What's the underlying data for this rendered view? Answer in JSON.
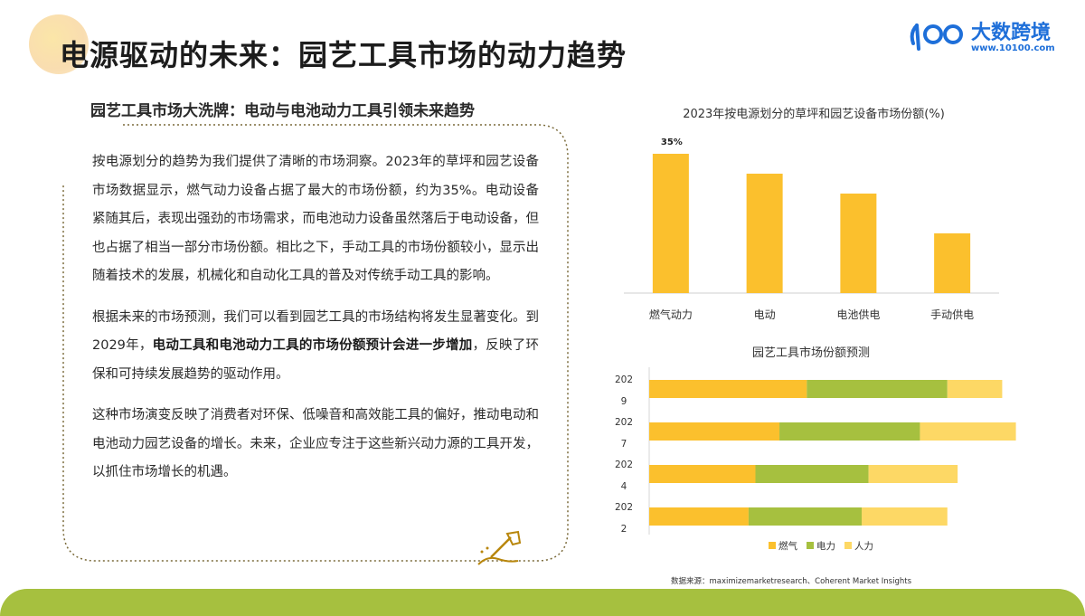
{
  "title": "电源驱动的未来：园艺工具市场的动力趋势",
  "logo": {
    "brand": "大数跨境",
    "url": "www.10100.com"
  },
  "subtitle": "园艺工具市场大洗牌：电动与电池动力工具引领未来趋势",
  "paragraphs": {
    "p1": "按电源划分的趋势为我们提供了清晰的市场洞察。2023年的草坪和园艺设备市场数据显示，燃气动力设备占据了最大的市场份额，约为35%。电动设备紧随其后，表现出强劲的市场需求，而电池动力设备虽然落后于电动设备，但也占据了相当一部分市场份额。相比之下，手动工具的市场份额较小，显示出随着技术的发展，机械化和自动化工具的普及对传统手动工具的影响。",
    "p2_a": "根据未来的市场预测，我们可以看到园艺工具的市场结构将发生显著变化。到2029年，",
    "p2_b": "电动工具和电池动力工具的市场份额预计会进一步增加",
    "p2_c": "，反映了环保和可持续发展趋势的驱动作用。",
    "p3": "这种市场演变反映了消费者对环保、低噪音和高效能工具的偏好，推动电动和电池动力园艺设备的增长。未来，企业应专注于这些新兴动力源的工具开发，以抓住市场增长的机遇。"
  },
  "source": "数据来源：maximizemarketresearch、Coherent Market Insights",
  "colors": {
    "accent": "#fbc02d",
    "green": "#a6c03f",
    "light": "#fdd865",
    "brand": "#1e6fd9"
  },
  "chart_data": [
    {
      "type": "bar",
      "title": "2023年按电源划分的草坪和园艺设备市场份额(%)",
      "categories": [
        "燃气动力",
        "电动",
        "电池供电",
        "手动供电"
      ],
      "values": [
        35,
        30,
        25,
        15
      ],
      "data_labels": [
        "35%",
        "",
        "",
        ""
      ],
      "ylim": [
        0,
        40
      ],
      "grid": false,
      "color": "#fbc02d"
    },
    {
      "type": "bar",
      "orientation": "horizontal",
      "stacked": true,
      "title": "园艺工具市场份额预测",
      "categories": [
        [
          "202",
          "9"
        ],
        [
          "202",
          "7"
        ],
        [
          "202",
          "4"
        ],
        [
          "202",
          "2"
        ]
      ],
      "series": [
        {
          "name": "燃气",
          "values": [
            46,
            38,
            31,
            29
          ],
          "color": "#fbc02d"
        },
        {
          "name": "电力",
          "values": [
            41,
            41,
            33,
            33
          ],
          "color": "#a6c03f"
        },
        {
          "name": "人力",
          "values": [
            16,
            28,
            26,
            25
          ],
          "color": "#fdd865"
        }
      ],
      "xlim": [
        0,
        105
      ],
      "legend": "bottom",
      "grid": false
    }
  ]
}
